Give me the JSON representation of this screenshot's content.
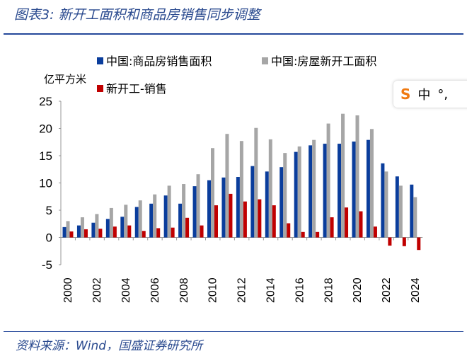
{
  "title": "图表3: 新开工面积和商品房销售同步调整",
  "source": "资料来源：Wind，国盛证券研究所",
  "ime": {
    "logo": "S",
    "mode": "中",
    "punct": "°,"
  },
  "chart_data": {
    "type": "bar",
    "title": "",
    "unit_label": "亿平方米",
    "xlabel": "",
    "ylabel": "亿平方米",
    "ylim": [
      -5,
      25
    ],
    "yticks": [
      -5,
      0,
      5,
      10,
      15,
      20,
      25
    ],
    "grid": false,
    "legend": "top",
    "categories": [
      "2000",
      "2001",
      "2002",
      "2003",
      "2004",
      "2005",
      "2006",
      "2007",
      "2008",
      "2009",
      "2010",
      "2011",
      "2012",
      "2013",
      "2014",
      "2015",
      "2016",
      "2017",
      "2018",
      "2019",
      "2020",
      "2021",
      "2022",
      "2023",
      "2024"
    ],
    "xtick_labels": [
      "2000",
      "2002",
      "2004",
      "2006",
      "2008",
      "2010",
      "2012",
      "2014",
      "2016",
      "2018",
      "2020",
      "2022",
      "2024"
    ],
    "series": [
      {
        "name": "中国:商品房销售面积",
        "color": "#0a3d9c",
        "values": [
          1.9,
          2.2,
          2.7,
          3.4,
          3.8,
          5.6,
          6.2,
          7.7,
          6.2,
          9.4,
          10.5,
          11.0,
          11.1,
          13.1,
          12.1,
          12.9,
          15.7,
          16.9,
          17.2,
          17.2,
          17.6,
          17.9,
          13.6,
          11.2,
          9.7
        ]
      },
      {
        "name": "中国:房屋新开工面积",
        "color": "#a6a6a6",
        "values": [
          3.0,
          3.7,
          4.3,
          5.4,
          6.0,
          6.8,
          7.9,
          9.5,
          9.8,
          11.6,
          16.4,
          19.0,
          17.7,
          20.1,
          18.0,
          15.5,
          16.7,
          17.9,
          20.9,
          22.7,
          22.4,
          19.9,
          12.1,
          9.5,
          7.4
        ]
      },
      {
        "name": "新开工-销售",
        "color": "#c00000",
        "values": [
          1.1,
          1.5,
          1.6,
          2.0,
          2.2,
          1.2,
          1.7,
          1.8,
          3.6,
          2.2,
          5.9,
          8.0,
          6.6,
          7.0,
          5.9,
          2.6,
          1.0,
          1.0,
          3.7,
          5.5,
          4.8,
          2.0,
          -1.5,
          -1.6,
          -2.3
        ]
      }
    ]
  }
}
